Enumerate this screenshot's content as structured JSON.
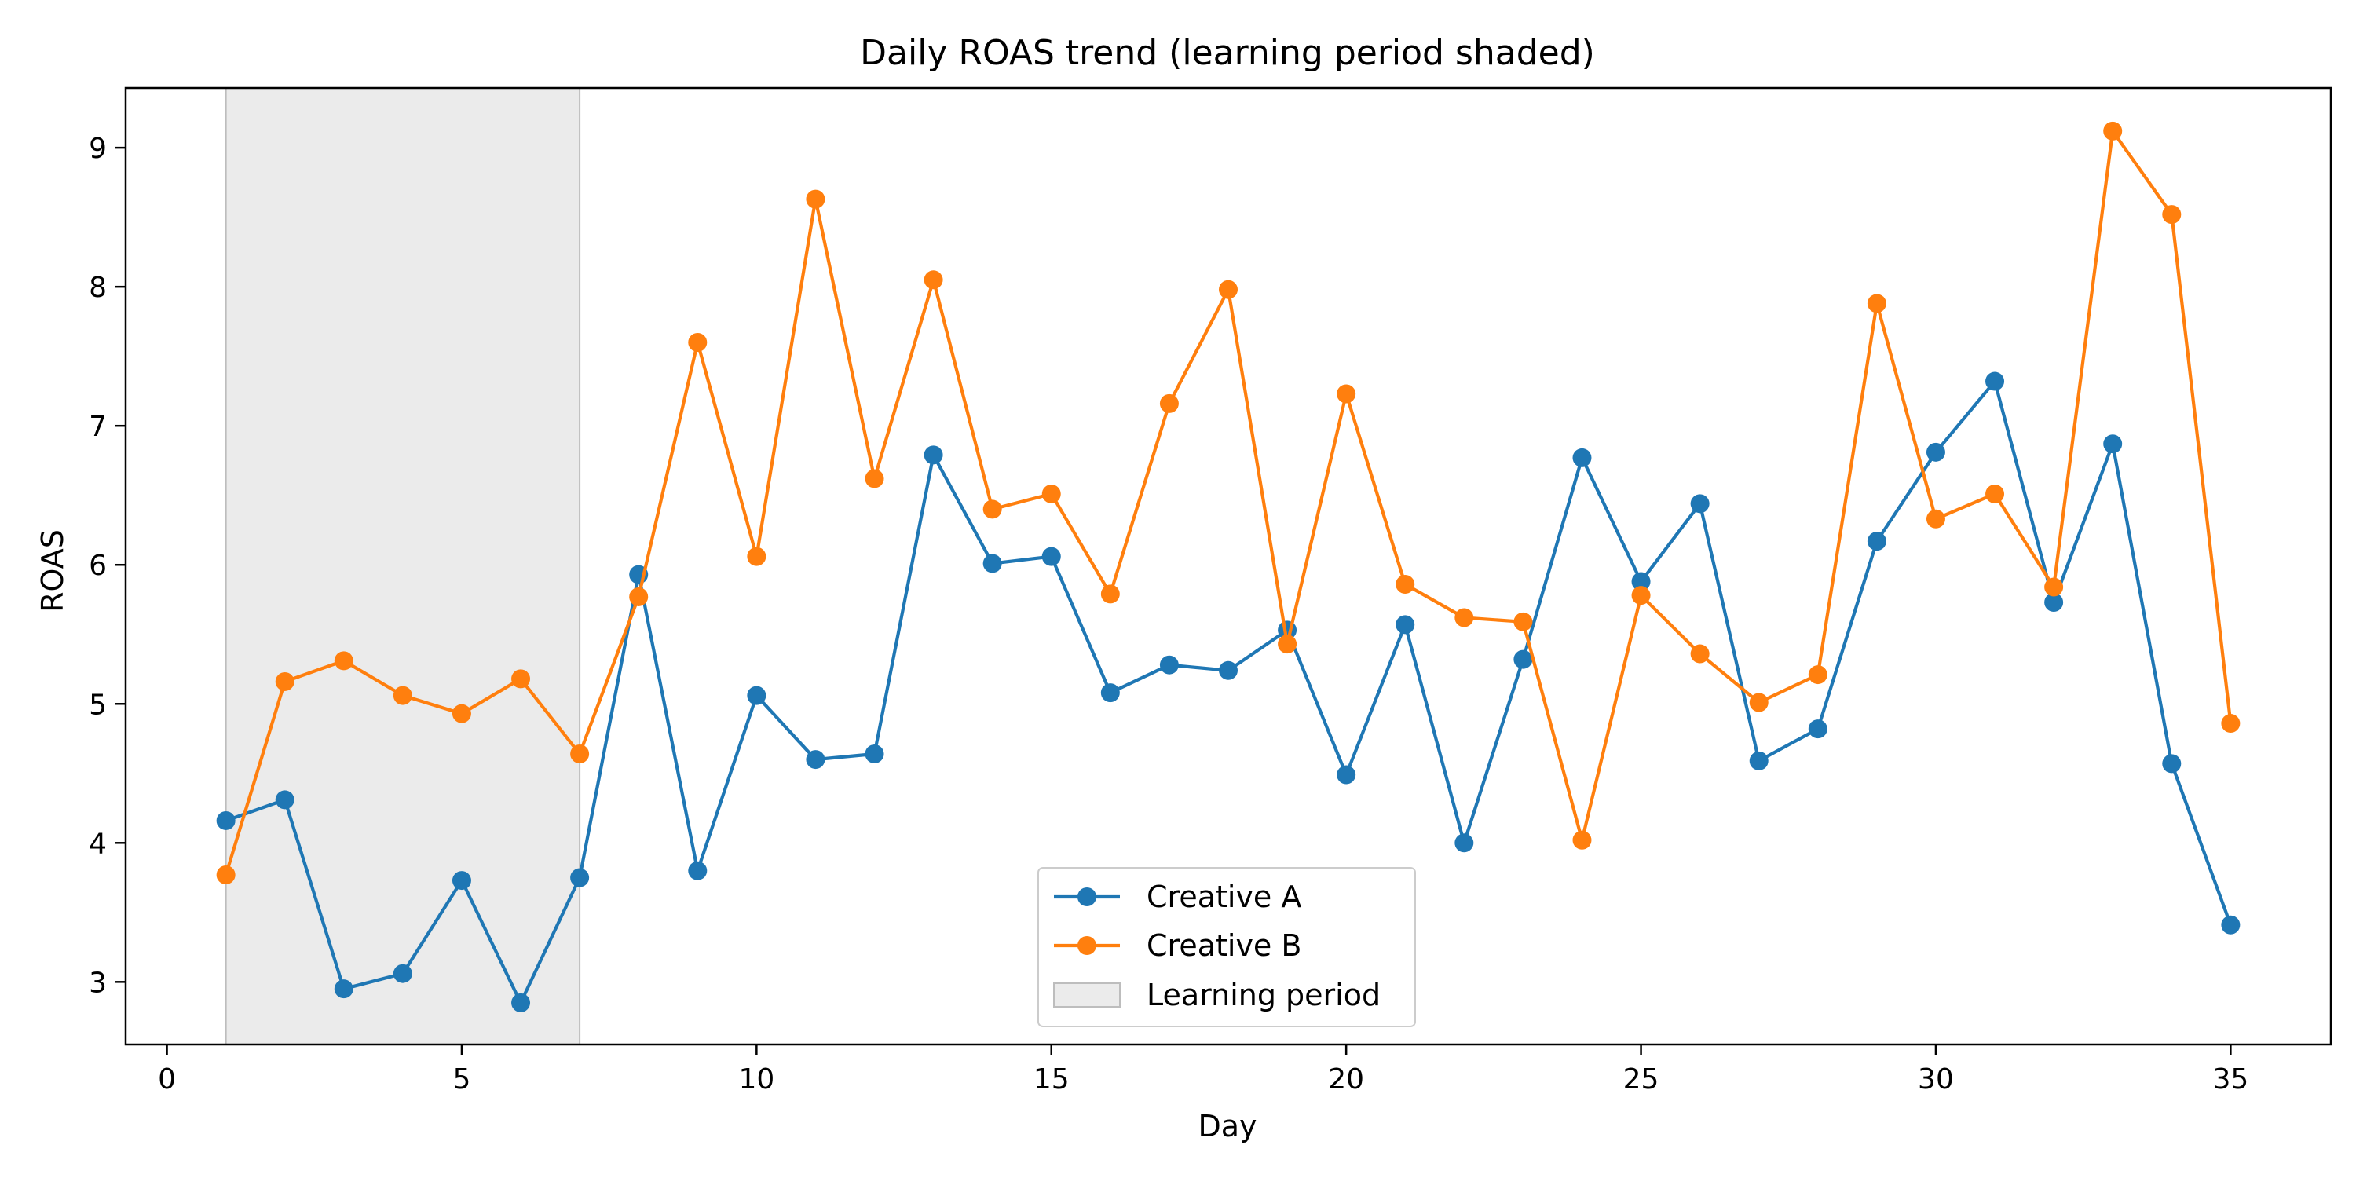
{
  "chart_data": {
    "type": "line",
    "title": "Daily ROAS trend (learning period shaded)",
    "xlabel": "Day",
    "ylabel": "ROAS",
    "xlim": [
      -0.7,
      36.7
    ],
    "ylim": [
      2.55,
      9.43
    ],
    "xticks": [
      0,
      5,
      10,
      15,
      20,
      25,
      30,
      35
    ],
    "yticks": [
      3,
      4,
      5,
      6,
      7,
      8,
      9
    ],
    "grid": false,
    "legend_position": "lower center",
    "shaded_region": {
      "name": "Learning period",
      "x_start": 1,
      "x_end": 7,
      "color": "#d3d3d3"
    },
    "x": [
      1,
      2,
      3,
      4,
      5,
      6,
      7,
      8,
      9,
      10,
      11,
      12,
      13,
      14,
      15,
      16,
      17,
      18,
      19,
      20,
      21,
      22,
      23,
      24,
      25,
      26,
      27,
      28,
      29,
      30,
      31,
      32,
      33,
      34,
      35
    ],
    "series": [
      {
        "name": "Creative A",
        "color": "#1f77b4",
        "values": [
          4.16,
          4.31,
          2.95,
          3.06,
          3.73,
          2.85,
          3.75,
          5.93,
          3.8,
          5.06,
          4.6,
          4.64,
          6.79,
          6.01,
          6.06,
          5.08,
          5.28,
          5.24,
          5.53,
          4.49,
          5.57,
          4.0,
          5.32,
          6.77,
          5.88,
          6.44,
          4.59,
          4.82,
          6.17,
          6.81,
          7.32,
          5.73,
          6.87,
          4.57,
          3.41
        ]
      },
      {
        "name": "Creative B",
        "color": "#ff7f0e",
        "values": [
          3.77,
          5.16,
          5.31,
          5.06,
          4.93,
          5.18,
          4.64,
          5.77,
          7.6,
          6.06,
          8.63,
          6.62,
          8.05,
          6.4,
          6.51,
          5.79,
          7.16,
          7.98,
          5.43,
          7.23,
          5.86,
          5.62,
          5.59,
          4.02,
          5.78,
          5.36,
          5.01,
          5.21,
          7.88,
          6.33,
          6.51,
          5.84,
          9.12,
          8.52,
          4.86
        ]
      }
    ]
  }
}
